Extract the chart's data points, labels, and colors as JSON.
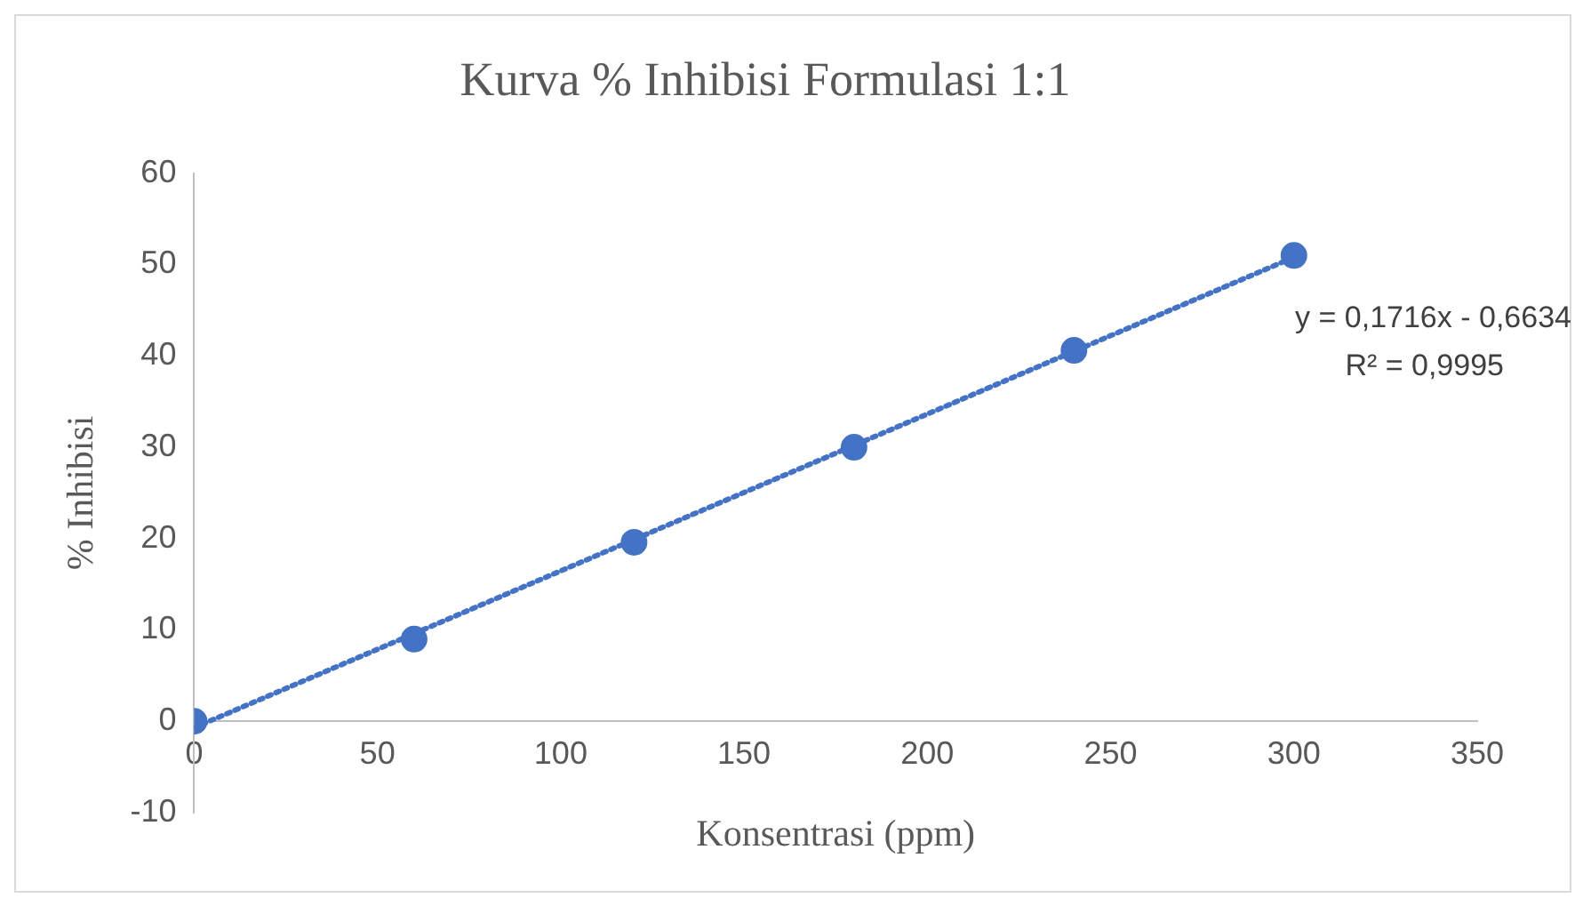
{
  "chart_data": {
    "type": "scatter",
    "title": "Kurva % Inhibisi Formulasi 1:1",
    "xlabel": "Konsentrasi (ppm)",
    "ylabel": "% Inhibisi",
    "series": [
      {
        "type": "scatter",
        "color": "#4472c4",
        "marker": "circle",
        "x": [
          0,
          60,
          120,
          180,
          240,
          300
        ],
        "values": [
          0,
          9.0,
          19.6,
          30.0,
          40.6,
          51.0
        ]
      },
      {
        "type": "line",
        "color": "#4472c4",
        "marker": "none",
        "line_style": "dotted",
        "x": [
          0,
          300
        ],
        "values": [
          -0.7,
          50.8
        ]
      }
    ],
    "xlim": [
      0,
      350
    ],
    "xticks": [
      0,
      50,
      100,
      150,
      200,
      250,
      300,
      350
    ],
    "ylim": [
      -10,
      60
    ],
    "yticks": [
      -10,
      0,
      10,
      20,
      30,
      40,
      50,
      60
    ],
    "grid": false,
    "legend": false,
    "annotations": [
      "y = 0,1716x - 0,6634",
      "R² = 0,9995"
    ]
  }
}
